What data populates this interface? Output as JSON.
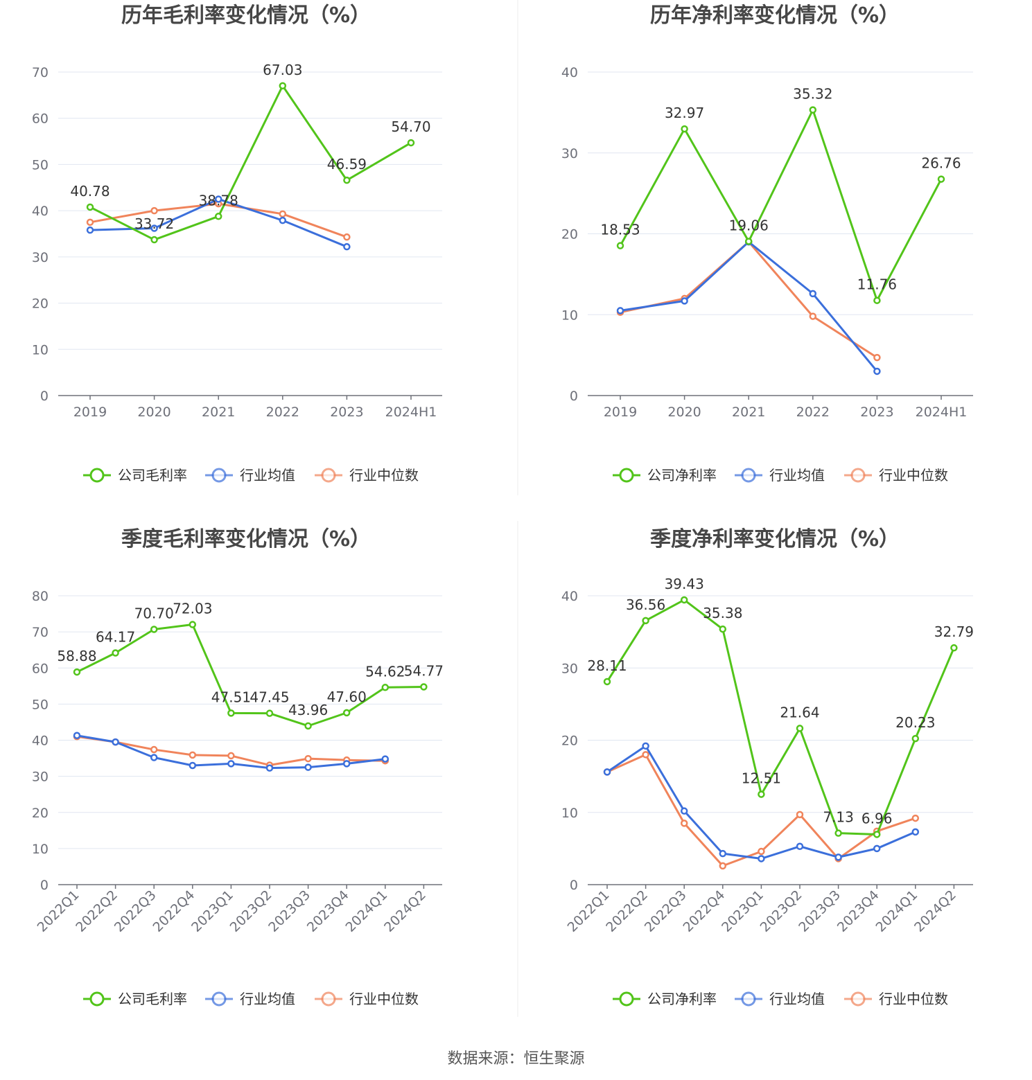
{
  "source_text": "数据来源：恒生聚源",
  "colors": {
    "company": "#52c41a",
    "avg": "#3b6fdb",
    "median": "#f0845b",
    "grid": "#e0e6f1",
    "axis": "#6e7079",
    "title": "#464646"
  },
  "chart_data": [
    {
      "type": "line",
      "title": "历年毛利率变化情况（%）",
      "categories": [
        "2019",
        "2020",
        "2021",
        "2022",
        "2023",
        "2024H1"
      ],
      "ylim": [
        0,
        70
      ],
      "yticks": [
        0,
        10,
        20,
        30,
        40,
        50,
        60,
        70
      ],
      "grid": true,
      "legend_position": "bottom",
      "series": [
        {
          "name": "公司毛利率",
          "values": [
            40.78,
            33.72,
            38.78,
            67.03,
            46.59,
            54.7
          ],
          "labels": [
            "40.78",
            "33.72",
            "38.78",
            "67.03",
            "46.59",
            "54.70"
          ]
        },
        {
          "name": "行业均值",
          "values": [
            35.8,
            36.2,
            42.5,
            37.9,
            32.2,
            null
          ]
        },
        {
          "name": "行业中位数",
          "values": [
            37.5,
            40.0,
            41.5,
            39.3,
            34.3,
            null
          ]
        }
      ]
    },
    {
      "type": "line",
      "title": "历年净利率变化情况（%）",
      "categories": [
        "2019",
        "2020",
        "2021",
        "2022",
        "2023",
        "2024H1"
      ],
      "ylim": [
        0,
        40
      ],
      "yticks": [
        0,
        10,
        20,
        30,
        40
      ],
      "grid": true,
      "legend_position": "bottom",
      "series": [
        {
          "name": "公司净利率",
          "values": [
            18.53,
            32.97,
            19.06,
            35.32,
            11.76,
            26.76
          ],
          "labels": [
            "18.53",
            "32.97",
            "19.06",
            "35.32",
            "11.76",
            "26.76"
          ]
        },
        {
          "name": "行业均值",
          "values": [
            10.5,
            11.7,
            19.0,
            12.6,
            3.0,
            null
          ]
        },
        {
          "name": "行业中位数",
          "values": [
            10.3,
            12.0,
            19.0,
            9.8,
            4.7,
            null
          ]
        }
      ]
    },
    {
      "type": "line",
      "title": "季度毛利率变化情况（%）",
      "categories": [
        "2022Q1",
        "2022Q2",
        "2022Q3",
        "2022Q4",
        "2023Q1",
        "2023Q2",
        "2023Q3",
        "2023Q4",
        "2024Q1",
        "2024Q2"
      ],
      "ylim": [
        0,
        80
      ],
      "yticks": [
        0,
        10,
        20,
        30,
        40,
        50,
        60,
        70,
        80
      ],
      "grid": true,
      "legend_position": "bottom",
      "series": [
        {
          "name": "公司毛利率",
          "values": [
            58.88,
            64.17,
            70.7,
            72.03,
            47.51,
            47.45,
            43.96,
            47.6,
            54.62,
            54.77
          ],
          "labels": [
            "58.88",
            "64.17",
            "70.70",
            "72.03",
            "47.51",
            "47.45",
            "43.96",
            "47.60",
            "54.62",
            "54.77"
          ]
        },
        {
          "name": "行业均值",
          "values": [
            41.3,
            39.5,
            35.2,
            33.0,
            33.5,
            32.3,
            32.5,
            33.5,
            34.8,
            null
          ]
        },
        {
          "name": "行业中位数",
          "values": [
            41.0,
            39.5,
            37.4,
            35.9,
            35.7,
            33.1,
            34.9,
            34.5,
            34.3,
            null
          ]
        }
      ]
    },
    {
      "type": "line",
      "title": "季度净利率变化情况（%）",
      "categories": [
        "2022Q1",
        "2022Q2",
        "2022Q3",
        "2022Q4",
        "2023Q1",
        "2023Q2",
        "2023Q3",
        "2023Q4",
        "2024Q1",
        "2024Q2"
      ],
      "ylim": [
        0,
        40
      ],
      "yticks": [
        0,
        10,
        20,
        30,
        40
      ],
      "grid": true,
      "legend_position": "bottom",
      "series": [
        {
          "name": "公司净利率",
          "values": [
            28.11,
            36.56,
            39.43,
            35.38,
            12.51,
            21.64,
            7.13,
            6.96,
            20.23,
            32.79
          ],
          "labels": [
            "28.11",
            "36.56",
            "39.43",
            "35.38",
            "12.51",
            "21.64",
            "7.13",
            "6.96",
            "20.23",
            "32.79"
          ]
        },
        {
          "name": "行业均值",
          "values": [
            15.6,
            19.2,
            10.2,
            4.3,
            3.6,
            5.3,
            3.8,
            5.0,
            7.3,
            null
          ]
        },
        {
          "name": "行业中位数",
          "values": [
            15.6,
            18.0,
            8.5,
            2.6,
            4.6,
            9.7,
            3.6,
            7.4,
            9.2,
            null
          ]
        }
      ]
    }
  ]
}
